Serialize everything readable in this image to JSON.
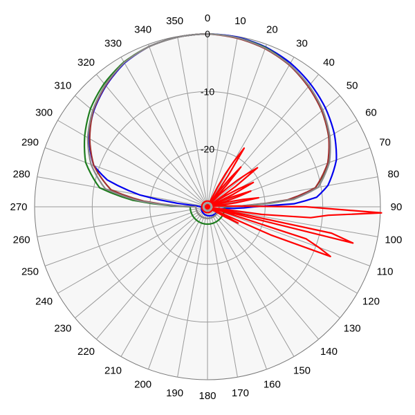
{
  "chart_data": {
    "type": "line",
    "subtype": "polar",
    "title": "",
    "angle_direction": "clockwise",
    "zero_at": "top",
    "angle_tick_labels": [
      "0",
      "10",
      "20",
      "30",
      "40",
      "50",
      "60",
      "70",
      "80",
      "90",
      "100",
      "110",
      "120",
      "130",
      "140",
      "150",
      "160",
      "170",
      "180",
      "190",
      "200",
      "210",
      "220",
      "230",
      "240",
      "250",
      "260",
      "270",
      "280",
      "290",
      "300",
      "310",
      "320",
      "330",
      "340",
      "350"
    ],
    "radial_ticks": [
      0,
      -10,
      -20
    ],
    "radial_tick_labels": [
      "0",
      "-10",
      "-20"
    ],
    "radial_range": [
      -30,
      0
    ],
    "grid": true,
    "legend": "none",
    "series": [
      {
        "color": "#0000ee",
        "points": [
          [
            0,
            0
          ],
          [
            10,
            -0.1
          ],
          [
            20,
            -0.5
          ],
          [
            30,
            -1.2
          ],
          [
            40,
            -2.2
          ],
          [
            50,
            -3.3
          ],
          [
            60,
            -4.6
          ],
          [
            70,
            -6.2
          ],
          [
            80,
            -8.8
          ],
          [
            85,
            -11
          ],
          [
            88,
            -15
          ],
          [
            90,
            -22
          ],
          [
            95,
            -27
          ],
          [
            100,
            -28
          ],
          [
            270,
            -29
          ],
          [
            275,
            -28
          ],
          [
            280,
            -18
          ],
          [
            285,
            -12
          ],
          [
            290,
            -9
          ],
          [
            300,
            -6.2
          ],
          [
            310,
            -4.2
          ],
          [
            320,
            -2.6
          ],
          [
            330,
            -1.2
          ],
          [
            340,
            -0.4
          ],
          [
            350,
            -0.1
          ],
          [
            360,
            0
          ]
        ]
      },
      {
        "color": "#1e7d1e",
        "points": [
          [
            0,
            0
          ],
          [
            10,
            -0.2
          ],
          [
            20,
            -0.6
          ],
          [
            30,
            -1.5
          ],
          [
            40,
            -2.7
          ],
          [
            50,
            -4.1
          ],
          [
            60,
            -5.7
          ],
          [
            70,
            -7.6
          ],
          [
            80,
            -11
          ],
          [
            85,
            -15
          ],
          [
            90,
            -27
          ],
          [
            270,
            -27
          ],
          [
            275,
            -17
          ],
          [
            280,
            -11
          ],
          [
            290,
            -7.5
          ],
          [
            300,
            -5.4
          ],
          [
            310,
            -3.5
          ],
          [
            320,
            -2.1
          ],
          [
            330,
            -1.0
          ],
          [
            340,
            -0.4
          ],
          [
            350,
            -0.1
          ],
          [
            360,
            0
          ]
        ]
      },
      {
        "color": "#a03030",
        "points": [
          [
            0,
            0
          ],
          [
            10,
            -0.3
          ],
          [
            20,
            -0.8
          ],
          [
            30,
            -1.6
          ],
          [
            40,
            -2.8
          ],
          [
            50,
            -4.1
          ],
          [
            60,
            -5.7
          ],
          [
            70,
            -7.8
          ],
          [
            80,
            -11
          ],
          [
            85,
            -16
          ],
          [
            90,
            -28
          ],
          [
            270,
            -28
          ],
          [
            275,
            -19
          ],
          [
            280,
            -13
          ],
          [
            290,
            -9
          ],
          [
            300,
            -6.4
          ],
          [
            310,
            -4.1
          ],
          [
            320,
            -2.5
          ],
          [
            330,
            -1.1
          ],
          [
            340,
            -0.4
          ],
          [
            350,
            -0.1
          ],
          [
            360,
            0
          ]
        ]
      },
      {
        "color": "#888888",
        "points": [
          [
            0,
            0
          ],
          [
            10,
            -0.2
          ],
          [
            20,
            -0.7
          ],
          [
            30,
            -1.5
          ],
          [
            40,
            -2.6
          ],
          [
            50,
            -3.9
          ],
          [
            60,
            -5.5
          ],
          [
            70,
            -7.5
          ],
          [
            80,
            -10.5
          ],
          [
            85,
            -15
          ],
          [
            90,
            -28
          ],
          [
            270,
            -28
          ],
          [
            275,
            -18
          ],
          [
            280,
            -12
          ],
          [
            290,
            -8.5
          ],
          [
            300,
            -6.0
          ],
          [
            310,
            -4.0
          ],
          [
            320,
            -2.4
          ],
          [
            330,
            -1.1
          ],
          [
            340,
            -0.4
          ],
          [
            350,
            -0.1
          ],
          [
            360,
            0
          ]
        ]
      },
      {
        "color": "#ff0000",
        "points": [
          [
            0,
            -29
          ],
          [
            25,
            -29
          ],
          [
            32,
            -18
          ],
          [
            35,
            -29
          ],
          [
            40,
            -21
          ],
          [
            43,
            -29
          ],
          [
            52,
            -19
          ],
          [
            56,
            -29
          ],
          [
            62,
            -21
          ],
          [
            66,
            -29
          ],
          [
            70,
            -22
          ],
          [
            75,
            -29
          ],
          [
            80,
            -21
          ],
          [
            84,
            -29
          ],
          [
            88,
            -26
          ],
          [
            92,
            0.2
          ],
          [
            94,
            -9
          ],
          [
            96,
            -12
          ],
          [
            100,
            -29
          ],
          [
            102,
            -8
          ],
          [
            104,
            -4
          ],
          [
            106,
            -29
          ],
          [
            108,
            -12
          ],
          [
            112,
            -7
          ],
          [
            116,
            -29
          ],
          [
            118,
            -24
          ],
          [
            122,
            -29
          ],
          [
            360,
            -29
          ]
        ]
      }
    ]
  }
}
